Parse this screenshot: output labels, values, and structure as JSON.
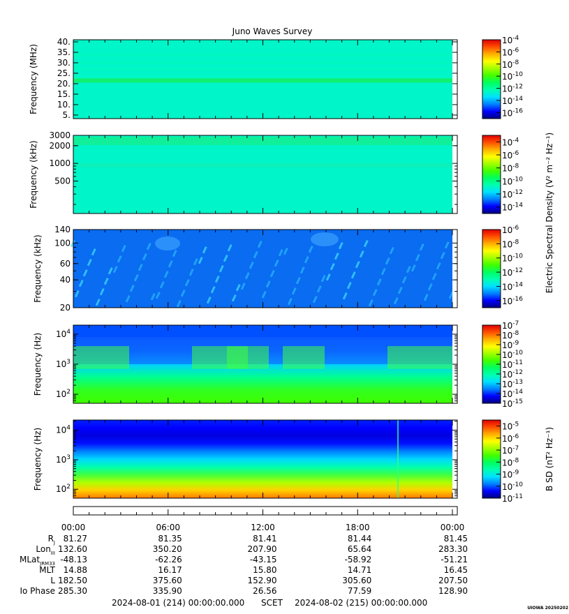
{
  "title": "Juno Waves Survey",
  "colors": {
    "colormap": [
      "#00007f",
      "#0000ff",
      "#0080ff",
      "#00e0ff",
      "#00ffb0",
      "#00ff60",
      "#40ff00",
      "#a0ff00",
      "#ffff00",
      "#ffb000",
      "#ff5000",
      "#e00000"
    ]
  },
  "chart_data": [
    {
      "type": "heatmap",
      "ylabel": "Frequency (MHz)",
      "yscale": "linear",
      "ylim": [
        3.3,
        41
      ],
      "yticks": [
        5,
        10,
        15,
        20,
        25,
        30,
        35,
        40
      ],
      "ytick_labels": [
        "5.",
        "10.",
        "15.",
        "20.",
        "25.",
        "30.",
        "35.",
        "40."
      ],
      "colorbar": {
        "ticks": [
          "10-4",
          "10-6",
          "10-8",
          "10-10",
          "10-12",
          "10-14",
          "10-16"
        ],
        "exponents": [
          -4,
          -6,
          -8,
          -10,
          -12,
          -14,
          -16
        ],
        "range_exp": [
          -17,
          -4
        ]
      }
    },
    {
      "type": "heatmap",
      "ylabel": "Frequency (kHz)",
      "yscale": "log",
      "ylim": [
        140,
        3000
      ],
      "yticks": [
        500,
        1000,
        2000,
        3000
      ],
      "ytick_labels": [
        "500",
        "1000",
        "2000",
        "3000"
      ],
      "colorbar": {
        "ticks": [
          "10-4",
          "10-6",
          "10-8",
          "10-10",
          "10-12",
          "10-14"
        ],
        "exponents": [
          -4,
          -6,
          -8,
          -10,
          -12,
          -14
        ],
        "range_exp": [
          -15,
          -3
        ]
      }
    },
    {
      "type": "heatmap",
      "ylabel": "Frequency (kHz)",
      "yscale": "log",
      "ylim": [
        20,
        140
      ],
      "yticks": [
        20,
        40,
        60,
        100,
        140
      ],
      "ytick_labels": [
        "20",
        "40",
        "60",
        "100",
        "140"
      ],
      "colorbar": {
        "ticks": [
          "10-6",
          "10-8",
          "10-10",
          "10-12",
          "10-14",
          "10-16"
        ],
        "exponents": [
          -6,
          -8,
          -10,
          -12,
          -14,
          -16
        ],
        "range_exp": [
          -17,
          -6
        ]
      }
    },
    {
      "type": "heatmap",
      "ylabel": "Frequency (Hz)",
      "yscale": "log",
      "ylim": [
        50,
        20000
      ],
      "yticks": [
        100,
        1000,
        10000
      ],
      "ytick_labels": [
        "10²",
        "10³",
        "10⁴"
      ],
      "colorbar": {
        "ticks": [
          "10-7",
          "10-8",
          "10-9",
          "10-10",
          "10-11",
          "10-12",
          "10-13",
          "10-14",
          "10-15"
        ],
        "exponents": [
          -7,
          -8,
          -9,
          -10,
          -11,
          -12,
          -13,
          -14,
          -15
        ],
        "range_exp": [
          -15,
          -7
        ]
      }
    },
    {
      "type": "heatmap",
      "ylabel": "Frequency (Hz)",
      "yscale": "log",
      "ylim": [
        50,
        22000
      ],
      "yticks": [
        100,
        1000,
        10000
      ],
      "ytick_labels": [
        "10²",
        "10³",
        "10⁴"
      ],
      "colorbar": {
        "ticks": [
          "10-5",
          "10-6",
          "10-7",
          "10-8",
          "10-9",
          "10-10",
          "10-11"
        ],
        "exponents": [
          -5,
          -6,
          -7,
          -8,
          -9,
          -10,
          -11
        ],
        "range_exp": [
          -11,
          -4.5
        ]
      }
    }
  ],
  "colorbar_labels": {
    "electric": "Electric Spectral Density (V² m⁻² Hz⁻¹)",
    "magnetic": "B SD (nT² Hz⁻¹)"
  },
  "time_ticks": [
    "00:00",
    "06:00",
    "12:00",
    "18:00",
    "00:00"
  ],
  "ephemeris": [
    {
      "label": "R",
      "sub": "J",
      "values": [
        "81.27",
        "81.35",
        "81.41",
        "81.44",
        "81.45"
      ]
    },
    {
      "label": "Lon",
      "sub": "III",
      "values": [
        "132.60",
        "350.20",
        "207.90",
        "65.64",
        "283.30"
      ]
    },
    {
      "label": "MLat",
      "sub": "JRM33",
      "values": [
        "-48.13",
        "-62.26",
        "-43.15",
        "-58.92",
        "-51.21"
      ]
    },
    {
      "label": "MLT",
      "sub": "",
      "values": [
        "14.88",
        "16.17",
        "15.80",
        "14.71",
        "16.45"
      ]
    },
    {
      "label": "L",
      "sub": "",
      "values": [
        "182.50",
        "375.60",
        "152.90",
        "305.60",
        "207.50"
      ]
    },
    {
      "label": "Io Phase",
      "sub": "",
      "values": [
        "285.30",
        "335.90",
        "26.56",
        "77.59",
        "128.90"
      ]
    }
  ],
  "footer": {
    "start": "2024-08-01 (214) 00:00:00.000",
    "scet": "SCET",
    "end": "2024-08-02 (215) 00:00:00.000",
    "stamp": "UIOWA 20250202"
  }
}
